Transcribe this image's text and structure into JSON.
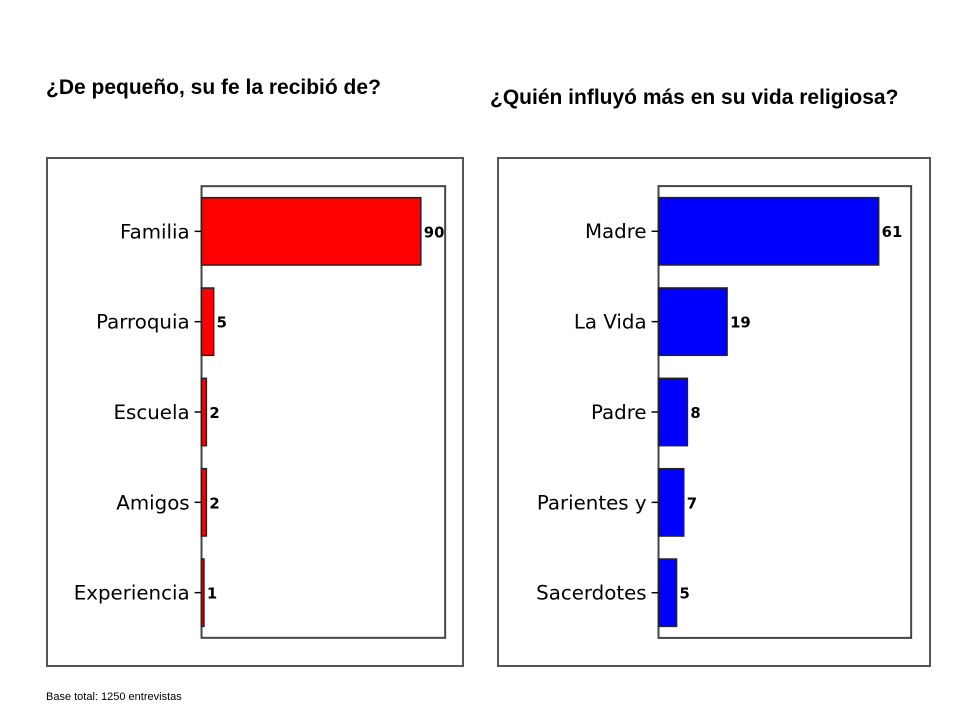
{
  "left": {
    "title": "¿De pequeño, su fe la recibió de?"
  },
  "right": {
    "title": "¿Quién influyó más en su vida religiosa?"
  },
  "footnote": "Base total: 1250 entrevistas",
  "chart_data": [
    {
      "type": "bar",
      "orientation": "horizontal",
      "title": "¿De pequeño, su fe la recibió de?",
      "categories": [
        "Familia",
        "Parroquia",
        "Escuela",
        "Amigos",
        "Experiencia"
      ],
      "values": [
        90,
        5,
        2,
        2,
        1
      ],
      "data_labels": [
        "90",
        "5",
        "2",
        "2",
        "1"
      ],
      "xlim": [
        0,
        100
      ],
      "color": "#ff0000",
      "grid": false,
      "legend": "none"
    },
    {
      "type": "bar",
      "orientation": "horizontal",
      "title": "¿Quién influyó más en su vida religiosa?",
      "categories": [
        "Madre",
        "La Vida",
        "Padre",
        "Parientes y",
        "Sacerdotes"
      ],
      "values": [
        61,
        19,
        8,
        7,
        5
      ],
      "data_labels": [
        "61",
        "19",
        "8",
        "7",
        "5"
      ],
      "xlim": [
        0,
        70
      ],
      "color": "#0000ff",
      "grid": false,
      "legend": "none"
    }
  ]
}
